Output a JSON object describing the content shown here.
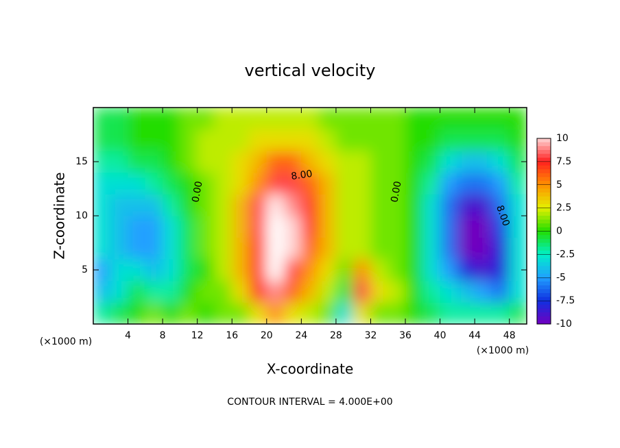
{
  "chart_data": {
    "type": "heatmap",
    "title": "vertical velocity",
    "x_label": "X-coordinate",
    "y_label": "Z-coordinate",
    "x_unit_label": "(×1000 m)",
    "y_unit_label": "(×1000 m)",
    "footer": "CONTOUR INTERVAL = 4.000E+00",
    "contour_labels": [
      "0.00",
      "8.00",
      "0.00",
      "8.00"
    ],
    "xlim": [
      0,
      50
    ],
    "ylim": [
      0,
      20
    ],
    "xticks": [
      4,
      8,
      12,
      16,
      20,
      24,
      28,
      32,
      36,
      40,
      44,
      48
    ],
    "yticks": [
      5,
      10,
      15
    ],
    "x": [
      1,
      3,
      5,
      7,
      9,
      11,
      13,
      15,
      17,
      19,
      21,
      23,
      25,
      27,
      29,
      31,
      33,
      35,
      37,
      39,
      41,
      43,
      45,
      47,
      49
    ],
    "y": [
      1,
      3,
      5,
      7,
      9,
      11,
      13,
      15,
      17,
      19
    ],
    "z": [
      [
        -2,
        -1,
        0,
        1,
        0,
        1,
        0,
        1,
        1,
        3,
        5,
        3,
        2,
        1,
        -3,
        3,
        1,
        1,
        0,
        -1,
        -2,
        -2,
        -2,
        -2,
        -1
      ],
      [
        -4,
        -3,
        -1,
        -2,
        -2,
        0,
        1,
        1,
        3,
        7,
        9,
        6,
        4,
        2,
        -1,
        8,
        3,
        2,
        0,
        -2,
        -3,
        -4,
        -5,
        -6,
        -3
      ],
      [
        -5,
        -3,
        -3,
        -4,
        -3,
        -1,
        0,
        2,
        4,
        7,
        12,
        8,
        5,
        3,
        1,
        5,
        2,
        1,
        0,
        -3,
        -5,
        -8,
        -9,
        -8,
        -3
      ],
      [
        -3,
        -4,
        -5,
        -5,
        -3,
        -1,
        1,
        2,
        4,
        7,
        13,
        10,
        6,
        4,
        2,
        2,
        1,
        1,
        0,
        -3,
        -6,
        -10,
        -11,
        -8,
        -3
      ],
      [
        -3,
        -4,
        -5,
        -5,
        -3,
        -1,
        1,
        2,
        4,
        8,
        12,
        10,
        7,
        4,
        2,
        2,
        1,
        1,
        0,
        -3,
        -6,
        -10,
        -11,
        -7,
        -3
      ],
      [
        -3,
        -4,
        -4,
        -4,
        -2,
        0,
        1,
        2,
        4,
        8,
        11,
        9,
        7,
        4,
        2,
        2,
        1,
        1,
        0,
        -3,
        -6,
        -9,
        -9,
        -6,
        -3
      ],
      [
        -3,
        -3,
        -3,
        -2,
        -1,
        0,
        1,
        2,
        3,
        5,
        8,
        8,
        6,
        4,
        2,
        2,
        1,
        1,
        0,
        -2,
        -5,
        -6,
        -6,
        -5,
        -2
      ],
      [
        -2,
        -2,
        -1,
        -1,
        0,
        1,
        2,
        2,
        3,
        4,
        6,
        6,
        4,
        3,
        2,
        2,
        1,
        1,
        0,
        -1,
        -3,
        -4,
        -4,
        -3,
        -1
      ],
      [
        -1,
        -1,
        0,
        0,
        0,
        1,
        2,
        2,
        2,
        3,
        3,
        3,
        3,
        2,
        1,
        1,
        1,
        1,
        0,
        0,
        -1,
        -1,
        -1,
        -1,
        0
      ],
      [
        -1,
        -1,
        0,
        0,
        0,
        1,
        1,
        2,
        2,
        2,
        2,
        2,
        2,
        1,
        1,
        1,
        1,
        1,
        0,
        0,
        0,
        0,
        0,
        0,
        0
      ]
    ],
    "colorbar_lim": [
      -10,
      10
    ],
    "colorbar_ticks": [
      10,
      7.5,
      5,
      2.5,
      0,
      -2.5,
      -5,
      -7.5,
      -10
    ],
    "colorbar_colors": [
      "#ffd6d6",
      "#ff2020",
      "#ff9000",
      "#e4f000",
      "#22dd00",
      "#00f0c8",
      "#20a0ff",
      "#1030e0",
      "#7000c0"
    ]
  }
}
